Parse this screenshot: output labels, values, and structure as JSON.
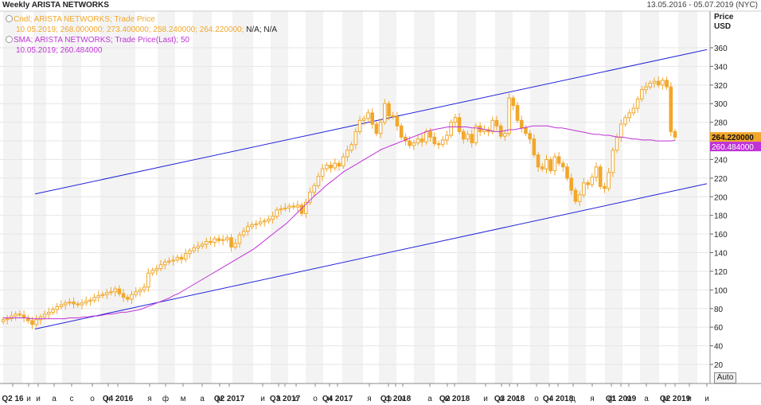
{
  "header": {
    "title": "Weekly ARISTA NETWORKS",
    "date_range": "13.05.2016 - 05.07.2019 (NYC)"
  },
  "legend": {
    "cndl_line1": "Cndl; ARISTA NETWORKS; Trade Price",
    "cndl_line2": "10.05.2019; 268.000000; 273.400000; 258.240000; 264.220000;",
    "cndl_na": "N/A; N/A",
    "sma_line1": "SMA; ARISTA NETWORKS; Trade Price(Last); 50",
    "sma_line2": "10.05.2019; 260.484000"
  },
  "price_axis": {
    "title_line1": "Price",
    "title_line2": "USD"
  },
  "auto_button": "Auto",
  "colors": {
    "candle": "#f2a72b",
    "sma": "#c033d6",
    "channel": "#2323d8",
    "label_candle_bg": "#f2a72b",
    "label_sma_bg": "#c033d6"
  },
  "chart_data": {
    "type": "candlestick",
    "title": "Weekly ARISTA NETWORKS",
    "ylabel": "Price USD",
    "ylim": [
      0,
      370
    ],
    "yticks": [
      20,
      40,
      60,
      80,
      100,
      120,
      140,
      160,
      180,
      200,
      220,
      240,
      260,
      280,
      300,
      320,
      340,
      360
    ],
    "grid": true,
    "x_ticks": [
      "Q2 16",
      "и",
      "и",
      "а",
      "с",
      "о",
      "н",
      "Q4 2016",
      "я",
      "ф",
      "м",
      "а",
      "м",
      "Q2 2017",
      "и",
      "а",
      "с",
      "Q3 2017",
      "о",
      "н",
      "Q4 2017",
      "я",
      "ф",
      "м",
      "Q1 2018",
      "а",
      "м",
      "Q2 2018",
      "и",
      "а",
      "с",
      "Q3 2018",
      "о",
      "н",
      "Q4 2018",
      "д",
      "я",
      "ф",
      "м",
      "Q1 2019",
      "а",
      "м",
      "Q2 2019",
      "и",
      "и"
    ],
    "last_price": "264.220000",
    "last_sma": "260.484000",
    "candle_closes": [
      68,
      69,
      72,
      74,
      73,
      70,
      67,
      63,
      68,
      71,
      74,
      76,
      79,
      82,
      84,
      86,
      87,
      85,
      84,
      86,
      88,
      89,
      92,
      94,
      95,
      97,
      98,
      101,
      96,
      92,
      90,
      95,
      98,
      100,
      103,
      118,
      121,
      123,
      127,
      130,
      131,
      132,
      135,
      133,
      139,
      142,
      145,
      147,
      149,
      152,
      151,
      155,
      153,
      154,
      156,
      146,
      150,
      159,
      163,
      168,
      170,
      171,
      173,
      174,
      176,
      179,
      186,
      187,
      188,
      190,
      189,
      191,
      182,
      194,
      205,
      212,
      222,
      230,
      234,
      231,
      236,
      233,
      243,
      250,
      256,
      270,
      282,
      284,
      290,
      278,
      268,
      280,
      300,
      287,
      286,
      276,
      264,
      260,
      255,
      258,
      262,
      259,
      270,
      264,
      257,
      256,
      261,
      266,
      280,
      285,
      270,
      262,
      267,
      258,
      276,
      270,
      272,
      270,
      282,
      276,
      265,
      268,
      306,
      298,
      282,
      274,
      268,
      262,
      245,
      232,
      230,
      240,
      228,
      243,
      236,
      232,
      220,
      207,
      195,
      202,
      215,
      213,
      221,
      232,
      211,
      209,
      226,
      250,
      264,
      278,
      285,
      290,
      295,
      305,
      315,
      318,
      322,
      324,
      320,
      325,
      318,
      270,
      264
    ],
    "sma_values": [
      70,
      70,
      70,
      70,
      70,
      70,
      69,
      69,
      69,
      69,
      69,
      69,
      69,
      69,
      70,
      70,
      70,
      71,
      71,
      72,
      72,
      73,
      74,
      74,
      75,
      76,
      76,
      77,
      78,
      79,
      81,
      83,
      85,
      87,
      89,
      91,
      94,
      96,
      99,
      102,
      105,
      108,
      111,
      114,
      117,
      120,
      123,
      126,
      129,
      132,
      135,
      138,
      141,
      144,
      148,
      152,
      156,
      160,
      164,
      168,
      172,
      177,
      182,
      187,
      192,
      197,
      202,
      206,
      211,
      215,
      219,
      223,
      227,
      230,
      233,
      236,
      239,
      242,
      245,
      248,
      251,
      253,
      255,
      257,
      259,
      261,
      263,
      265,
      267,
      269,
      271,
      272,
      273,
      274,
      275,
      275,
      275,
      275,
      275,
      274,
      274,
      273,
      272,
      271,
      270,
      270,
      271,
      272,
      272,
      273,
      274,
      275,
      276,
      276,
      276,
      276,
      275,
      274,
      274,
      273,
      272,
      271,
      270,
      269,
      268,
      267,
      267,
      266,
      266,
      265,
      264,
      264,
      263,
      262,
      262,
      261,
      261,
      261,
      260,
      260,
      260,
      260,
      260.484
    ],
    "channel_upper": [
      {
        "x_week": 0,
        "y": 203
      },
      {
        "x_week": 164,
        "y": 358
      }
    ],
    "channel_lower": [
      {
        "x_week": 0,
        "y": 58
      },
      {
        "x_week": 164,
        "y": 214
      }
    ]
  }
}
